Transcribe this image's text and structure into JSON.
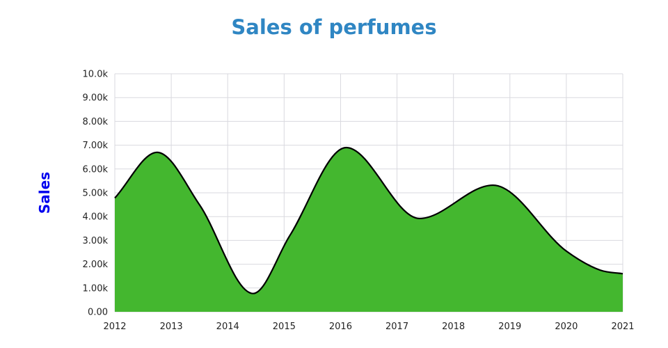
{
  "chart_data": {
    "type": "area",
    "title": "Sales of perfumes",
    "xlabel": "",
    "ylabel": "Sales",
    "x_ticks": [
      "2012",
      "2013",
      "2014",
      "2015",
      "2016",
      "2017",
      "2018",
      "2019",
      "2020",
      "2021"
    ],
    "y_ticks": [
      "0.00",
      "1.00k",
      "2.00k",
      "3.00k",
      "4.00k",
      "5.00k",
      "6.00k",
      "7.00k",
      "8.00k",
      "9.00k",
      "10.0k"
    ],
    "xlim": [
      2012,
      2021
    ],
    "ylim": [
      0,
      10000
    ],
    "grid": true,
    "fill_color": "#44b72f",
    "line_color": "#000000",
    "points": [
      {
        "x": 2012.0,
        "y": 4780
      },
      {
        "x": 2012.75,
        "y": 6700
      },
      {
        "x": 2013.5,
        "y": 4500
      },
      {
        "x": 2014.45,
        "y": 770
      },
      {
        "x": 2015.1,
        "y": 3200
      },
      {
        "x": 2016.1,
        "y": 6900
      },
      {
        "x": 2017.4,
        "y": 3920
      },
      {
        "x": 2018.7,
        "y": 5320
      },
      {
        "x": 2020.0,
        "y": 2550
      },
      {
        "x": 2020.6,
        "y": 1750
      },
      {
        "x": 2021.0,
        "y": 1600
      }
    ]
  }
}
